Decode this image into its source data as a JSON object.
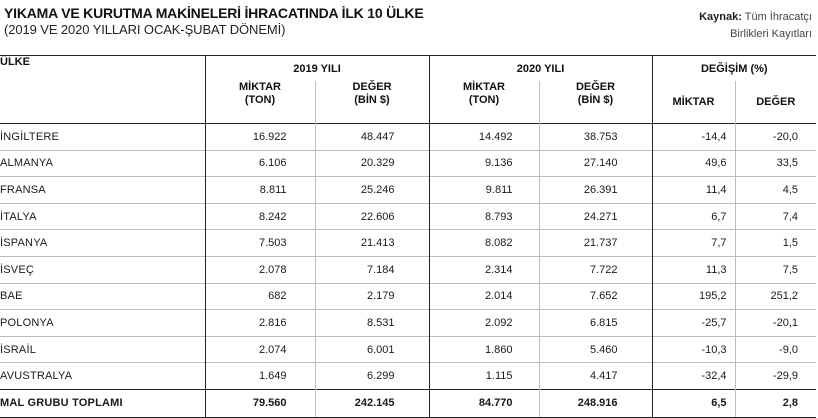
{
  "title": "YIKAMA VE KURUTMA MAKİNELERİ İHRACATINDA İLK 10 ÜLKE",
  "subtitle": "(2019 VE 2020 YILLARI OCAK-ŞUBAT DÖNEMİ)",
  "source": {
    "label": "Kaynak:",
    "line1": "Tüm İhracatçı",
    "line2": "Birlikleri Kayıtları"
  },
  "table": {
    "country_header": "ÜLKE",
    "group_headers": [
      "2019 YILI",
      "2020 YILI",
      "DEĞİŞİM (%)"
    ],
    "sub_headers": {
      "miktar_line1": "MİKTAR",
      "miktar_line2": "(TON)",
      "deger_line1": "DEĞER",
      "deger_line2": "(BİN $)",
      "change_miktar": "MİKTAR",
      "change_deger": "DEĞER"
    },
    "rows": [
      {
        "country": "İNGİLTERE",
        "m2019": "16.922",
        "v2019": "48.447",
        "m2020": "14.492",
        "v2020": "38.753",
        "dm": "-14,4",
        "dv": "-20,0"
      },
      {
        "country": "ALMANYA",
        "m2019": "6.106",
        "v2019": "20.329",
        "m2020": "9.136",
        "v2020": "27.140",
        "dm": "49,6",
        "dv": "33,5"
      },
      {
        "country": "FRANSA",
        "m2019": "8.811",
        "v2019": "25.246",
        "m2020": "9.811",
        "v2020": "26.391",
        "dm": "11,4",
        "dv": "4,5"
      },
      {
        "country": "İTALYA",
        "m2019": "8.242",
        "v2019": "22.606",
        "m2020": "8.793",
        "v2020": "24.271",
        "dm": "6,7",
        "dv": "7,4"
      },
      {
        "country": "İSPANYA",
        "m2019": "7.503",
        "v2019": "21.413",
        "m2020": "8.082",
        "v2020": "21.737",
        "dm": "7,7",
        "dv": "1,5"
      },
      {
        "country": "İSVEÇ",
        "m2019": "2.078",
        "v2019": "7.184",
        "m2020": "2.314",
        "v2020": "7.722",
        "dm": "11,3",
        "dv": "7,5"
      },
      {
        "country": "BAE",
        "m2019": "682",
        "v2019": "2.179",
        "m2020": "2.014",
        "v2020": "7.652",
        "dm": "195,2",
        "dv": "251,2"
      },
      {
        "country": "POLONYA",
        "m2019": "2.816",
        "v2019": "8.531",
        "m2020": "2.092",
        "v2020": "6.815",
        "dm": "-25,7",
        "dv": "-20,1"
      },
      {
        "country": "İSRAİL",
        "m2019": "2.074",
        "v2019": "6.001",
        "m2020": "1.860",
        "v2020": "5.460",
        "dm": "-10,3",
        "dv": "-9,0"
      },
      {
        "country": "AVUSTRALYA",
        "m2019": "1.649",
        "v2019": "6.299",
        "m2020": "1.115",
        "v2020": "4.417",
        "dm": "-32,4",
        "dv": "-29,9"
      }
    ],
    "total": {
      "country": "MAL GRUBU TOPLAMI",
      "m2019": "79.560",
      "v2019": "242.145",
      "m2020": "84.770",
      "v2020": "248.916",
      "dm": "6,5",
      "dv": "2,8"
    }
  }
}
